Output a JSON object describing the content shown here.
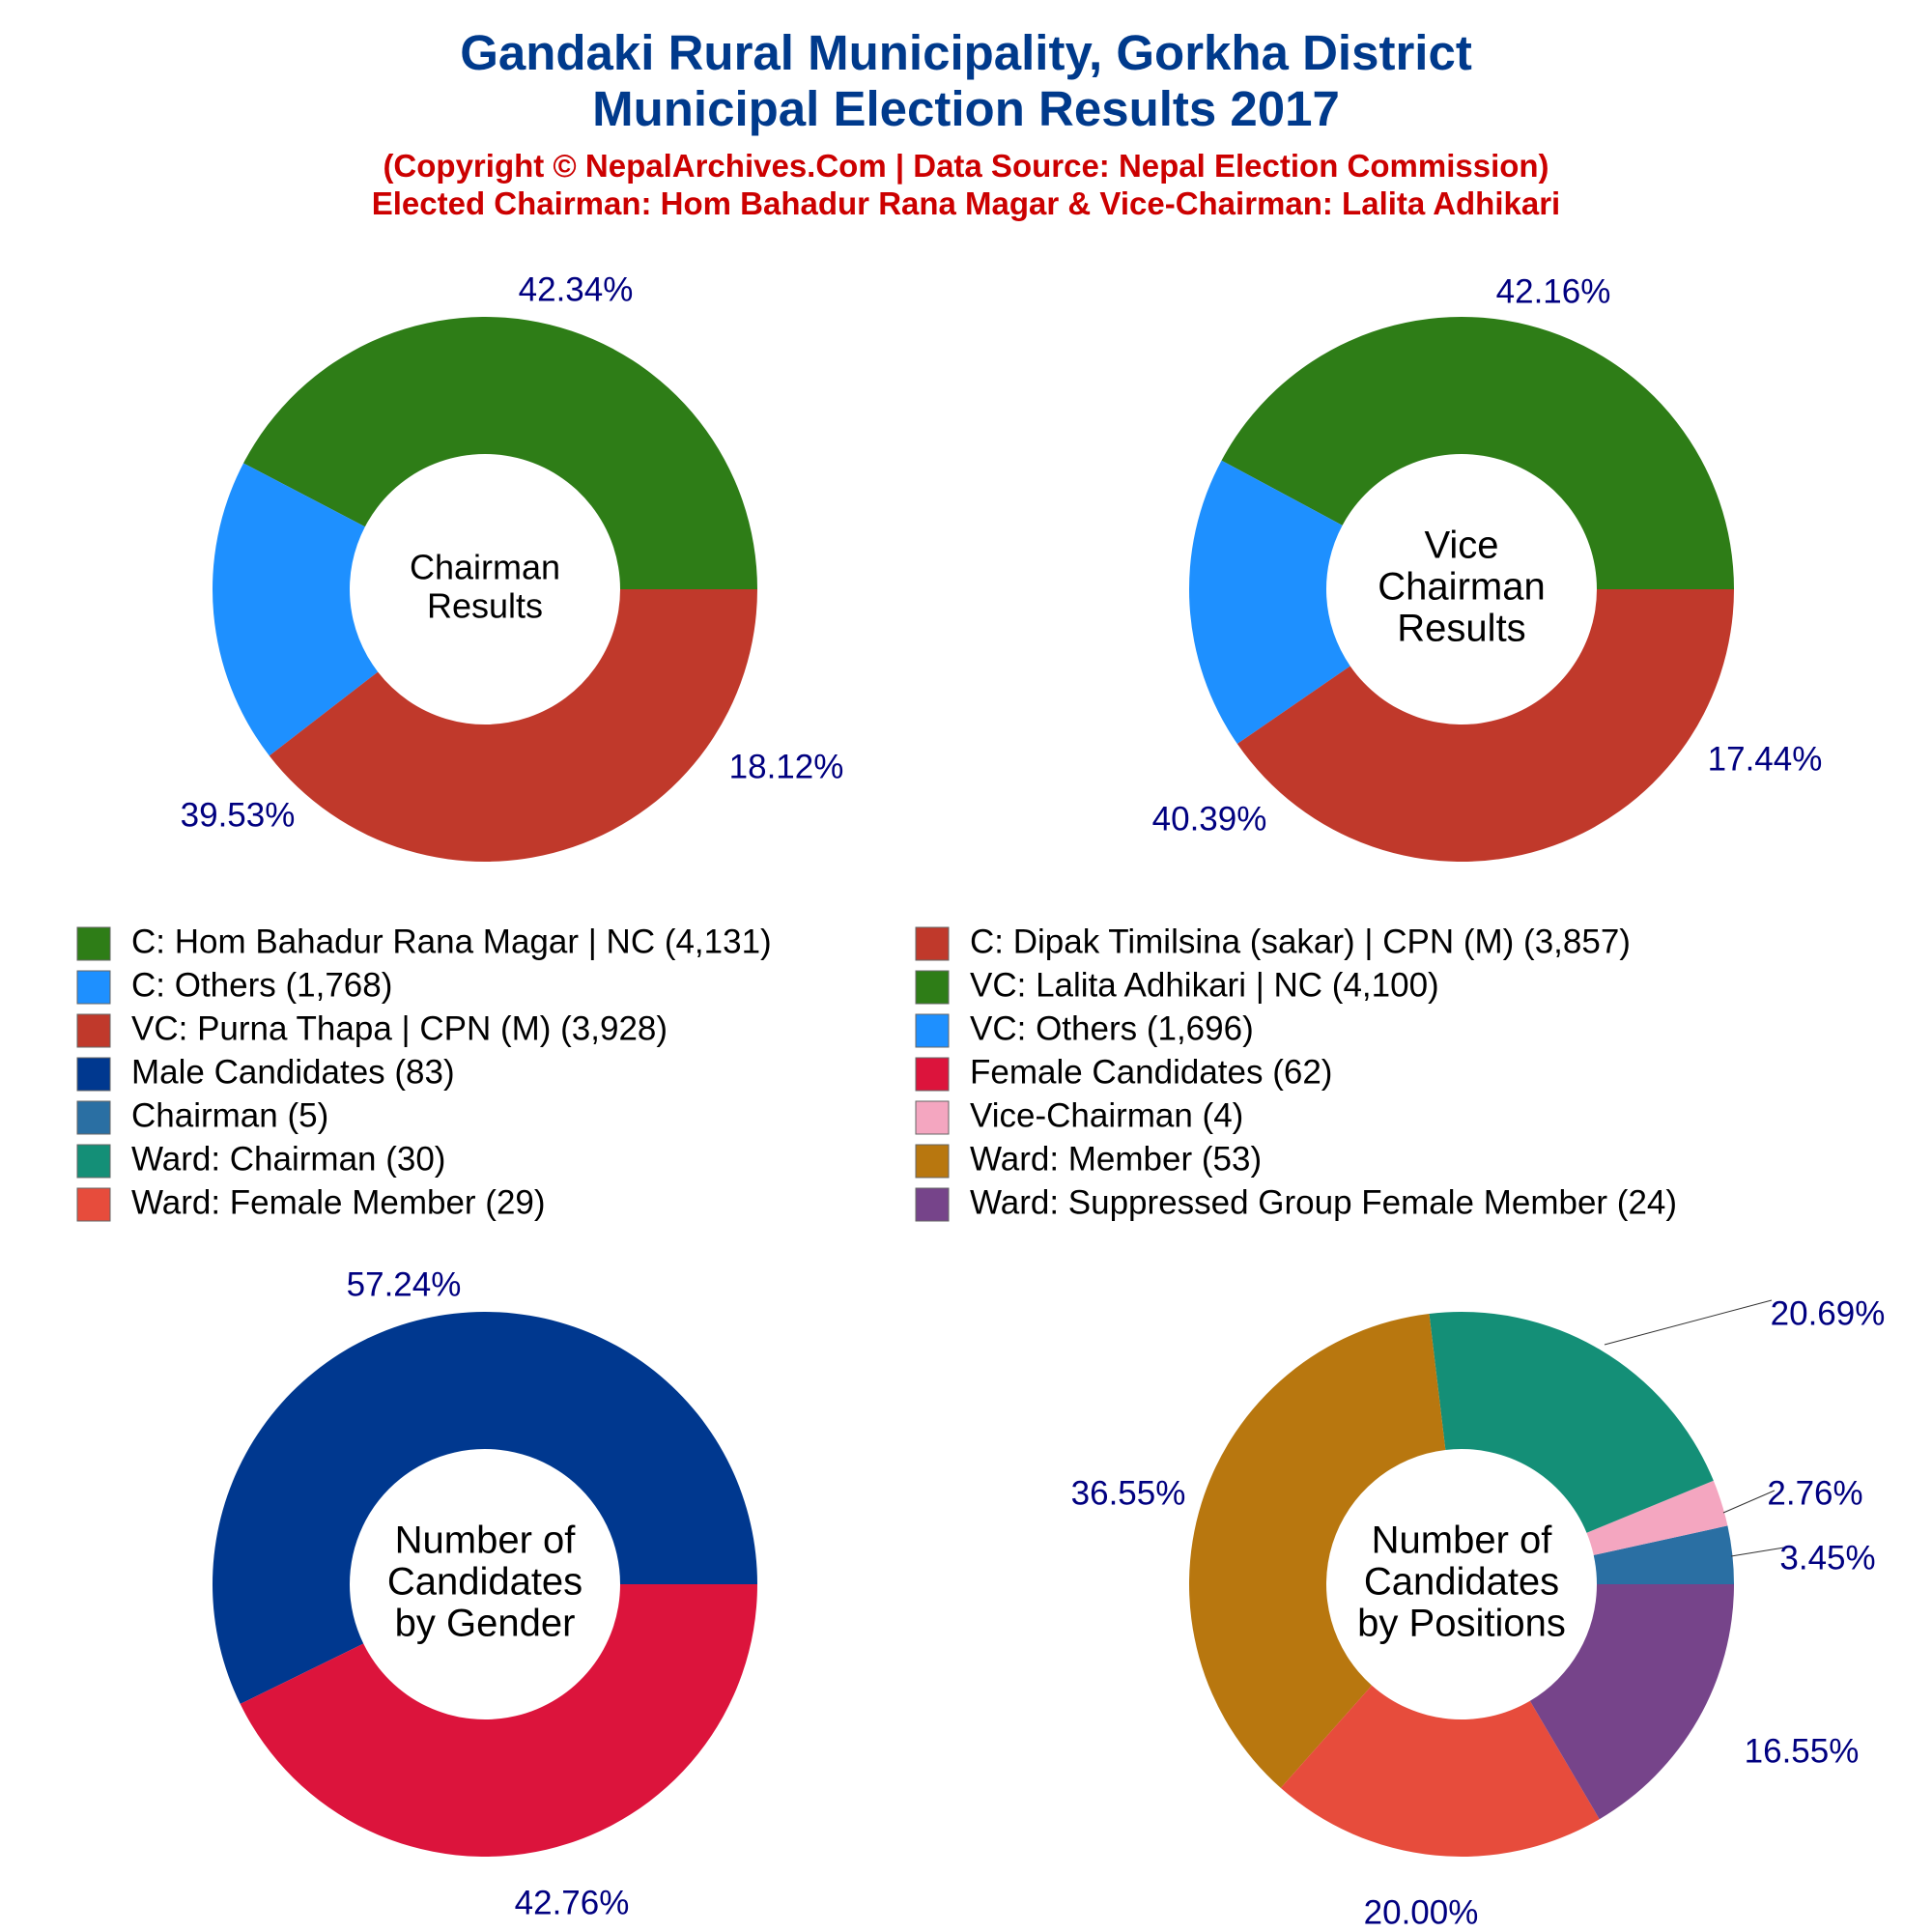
{
  "header": {
    "title_line1": "Gandaki Rural Municipality, Gorkha District",
    "title_line2": "Municipal Election Results 2017",
    "subtitle_line1": "(Copyright © NepalArchives.Com | Data Source: Nepal Election Commission)",
    "subtitle_line2": "Elected Chairman: Hom Bahadur Rana Magar & Vice-Chairman: Lalita Adhikari"
  },
  "legend": [
    {
      "label": "C: Hom Bahadur Rana Magar | NC (4,131)",
      "color": "#2e7d17"
    },
    {
      "label": "C: Dipak Timilsina (sakar) | CPN (M) (3,857)",
      "color": "#c0392b"
    },
    {
      "label": "C: Others (1,768)",
      "color": "#1e90ff"
    },
    {
      "label": "VC: Lalita Adhikari | NC (4,100)",
      "color": "#2e7d17"
    },
    {
      "label": "VC: Purna Thapa | CPN (M) (3,928)",
      "color": "#c0392b"
    },
    {
      "label": "VC: Others (1,696)",
      "color": "#1e90ff"
    },
    {
      "label": "Male Candidates (83)",
      "color": "#00388f"
    },
    {
      "label": "Female Candidates (62)",
      "color": "#dc143c"
    },
    {
      "label": "Chairman (5)",
      "color": "#2a6fa3"
    },
    {
      "label": "Vice-Chairman (4)",
      "color": "#f4a6c0"
    },
    {
      "label": "Ward: Chairman (30)",
      "color": "#148f77"
    },
    {
      "label": "Ward: Member (53)",
      "color": "#b8770f"
    },
    {
      "label": "Ward: Female Member (29)",
      "color": "#e74c3c"
    },
    {
      "label": "Ward: Suppressed Group Female Member (24)",
      "color": "#76448a"
    }
  ],
  "chart_data": [
    {
      "type": "pie",
      "variant": "donut",
      "center_label": [
        "Chairman",
        "Results"
      ],
      "slices": [
        {
          "name": "C: Hom Bahadur Rana Magar | NC",
          "value": 4131,
          "label": "42.34%",
          "color": "#2e7d17"
        },
        {
          "name": "C: Others",
          "value": 1768,
          "label": "18.12%",
          "color": "#1e90ff"
        },
        {
          "name": "C: Dipak Timilsina (sakar) | CPN (M)",
          "value": 3857,
          "label": "39.53%",
          "color": "#c0392b"
        }
      ]
    },
    {
      "type": "pie",
      "variant": "donut",
      "center_label": [
        "Vice",
        "Chairman",
        "Results"
      ],
      "slices": [
        {
          "name": "VC: Lalita Adhikari | NC",
          "value": 4100,
          "label": "42.16%",
          "color": "#2e7d17"
        },
        {
          "name": "VC: Others",
          "value": 1696,
          "label": "17.44%",
          "color": "#1e90ff"
        },
        {
          "name": "VC: Purna Thapa | CPN (M)",
          "value": 3928,
          "label": "40.39%",
          "color": "#c0392b"
        }
      ]
    },
    {
      "type": "pie",
      "variant": "donut",
      "center_label": [
        "Number of",
        "Candidates",
        "by Gender"
      ],
      "slices": [
        {
          "name": "Male Candidates",
          "value": 83,
          "label": "57.24%",
          "color": "#00388f"
        },
        {
          "name": "Female Candidates",
          "value": 62,
          "label": "42.76%",
          "color": "#dc143c"
        }
      ]
    },
    {
      "type": "pie",
      "variant": "donut",
      "center_label": [
        "Number of",
        "Candidates",
        "by Positions"
      ],
      "slices": [
        {
          "name": "Chairman",
          "value": 5,
          "label": "3.45%",
          "color": "#2a6fa3"
        },
        {
          "name": "Vice-Chairman",
          "value": 4,
          "label": "2.76%",
          "color": "#f4a6c0"
        },
        {
          "name": "Ward: Chairman",
          "value": 30,
          "label": "20.69%",
          "color": "#148f77"
        },
        {
          "name": "Ward: Member",
          "value": 53,
          "label": "36.55%",
          "color": "#b8770f"
        },
        {
          "name": "Ward: Female Member",
          "value": 29,
          "label": "20.00%",
          "color": "#e74c3c"
        },
        {
          "name": "Ward: Suppressed Group Female Member",
          "value": 24,
          "label": "16.55%",
          "color": "#76448a"
        }
      ]
    }
  ]
}
